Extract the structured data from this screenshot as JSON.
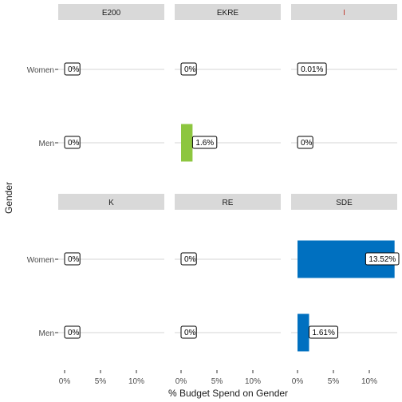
{
  "chart_data": {
    "type": "bar",
    "orientation": "horizontal",
    "xlabel": "% Budget Spend on Gender",
    "ylabel": "Gender",
    "categories": [
      "Women",
      "Men"
    ],
    "x_ticks": [
      "0%",
      "5%",
      "10%"
    ],
    "xlim": [
      0,
      14
    ],
    "grid": "horizontal",
    "panels": [
      {
        "name": "E200",
        "name_color": "#1a1a1a",
        "color": "#8dc63f",
        "values": [
          0,
          0
        ],
        "labels": [
          "0%",
          "0%"
        ]
      },
      {
        "name": "EKRE",
        "name_color": "#1a1a1a",
        "color": "#8dc63f",
        "values": [
          0,
          1.6
        ],
        "labels": [
          "0%",
          "1.6%"
        ]
      },
      {
        "name": "I",
        "name_color": "#c0392b",
        "color": "#1f4e9c",
        "values": [
          0.01,
          0
        ],
        "labels": [
          "0.01%",
          "0%"
        ]
      },
      {
        "name": "K",
        "name_color": "#1a1a1a",
        "color": "#f2b705",
        "values": [
          0,
          0
        ],
        "labels": [
          "0%",
          "0%"
        ]
      },
      {
        "name": "RE",
        "name_color": "#1a1a1a",
        "color": "#f2b705",
        "values": [
          0,
          0
        ],
        "labels": [
          "0%",
          "0%"
        ]
      },
      {
        "name": "SDE",
        "name_color": "#1a1a1a",
        "color": "#0070c0",
        "values": [
          13.52,
          1.61
        ],
        "labels": [
          "13.52%",
          "1.61%"
        ]
      }
    ]
  }
}
